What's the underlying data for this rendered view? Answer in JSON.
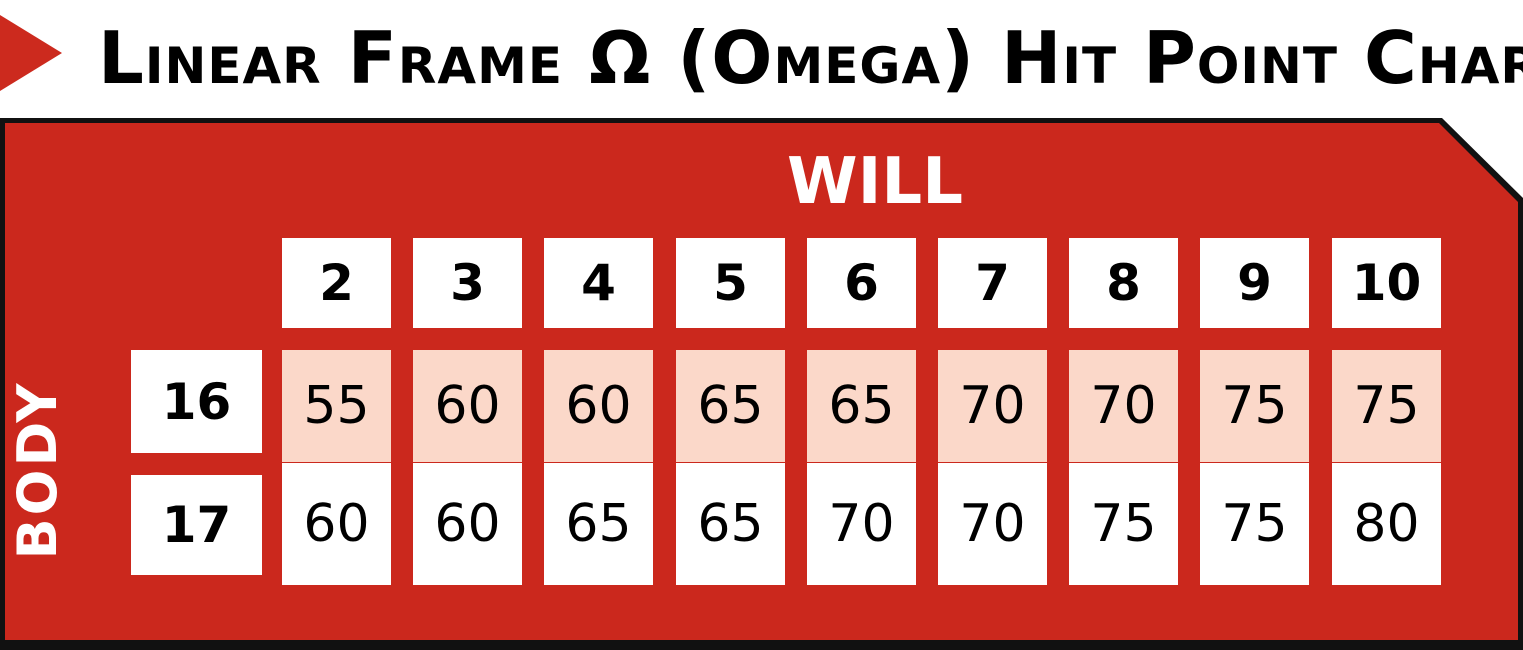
{
  "title": "Linear Frame Ω (Omega) Hit Point Chart",
  "axes": {
    "columns": "WILL",
    "rows": "BODY"
  },
  "colors": {
    "accent_red": "#cb281d",
    "row_highlight": "#fbd8c9",
    "cell_white": "#ffffff",
    "text": "#000000"
  },
  "table": {
    "will_values": [
      "2",
      "3",
      "4",
      "5",
      "6",
      "7",
      "8",
      "9",
      "10"
    ],
    "rows": [
      {
        "body": "16",
        "values": [
          "55",
          "60",
          "60",
          "65",
          "65",
          "70",
          "70",
          "75",
          "75"
        ],
        "highlight": true
      },
      {
        "body": "17",
        "values": [
          "60",
          "60",
          "65",
          "65",
          "70",
          "70",
          "75",
          "75",
          "80"
        ],
        "highlight": false
      }
    ]
  }
}
